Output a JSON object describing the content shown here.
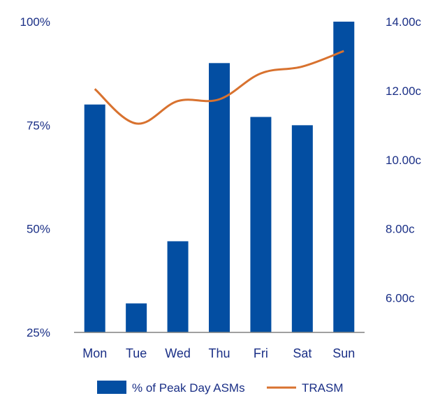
{
  "chart_data": {
    "type": "bar",
    "categories": [
      "Mon",
      "Tue",
      "Wed",
      "Thu",
      "Fri",
      "Sat",
      "Sun"
    ],
    "series": [
      {
        "name": "% of Peak Day ASMs",
        "type": "bar",
        "axis": "left",
        "values": [
          80,
          32,
          47,
          90,
          77,
          75,
          100
        ]
      },
      {
        "name": "TRASM",
        "type": "line",
        "axis": "right",
        "values": [
          12.05,
          11.05,
          11.7,
          11.75,
          12.5,
          12.7,
          13.15
        ]
      }
    ],
    "y_left": {
      "ticks": [
        25,
        50,
        75,
        100
      ],
      "tick_labels": [
        "25%",
        "50%",
        "75%",
        "100%"
      ],
      "ylim": [
        25,
        100
      ]
    },
    "y_right": {
      "ticks": [
        6,
        8,
        10,
        12,
        14
      ],
      "tick_labels": [
        "6.00c",
        "8.00c",
        "10.00c",
        "12.00c",
        "14.00c"
      ],
      "ylim": [
        5,
        14
      ]
    },
    "legend": {
      "placement": "bottom",
      "items": [
        "% of Peak Day ASMs",
        "TRASM"
      ]
    },
    "colors": {
      "bar": "#034ea2",
      "line": "#d8722f",
      "axis": "#808080",
      "text": "#1a2f86"
    },
    "grid": false
  }
}
